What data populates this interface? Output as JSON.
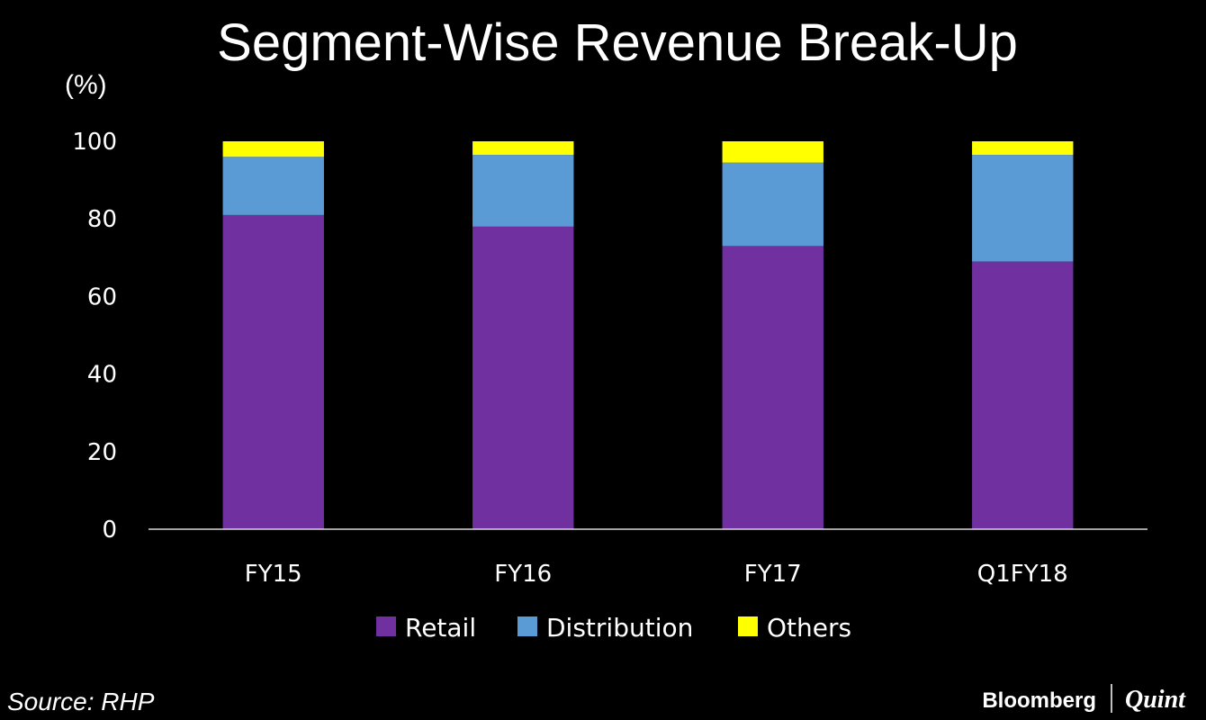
{
  "title": "Segment-Wise Revenue Break-Up",
  "unit_label": "(%)",
  "source": "Source: RHP",
  "brand": {
    "name": "Bloomberg",
    "name2": "Quint"
  },
  "chart_data": {
    "type": "bar",
    "stacked": true,
    "categories": [
      "FY15",
      "FY16",
      "FY17",
      "Q1FY18"
    ],
    "series": [
      {
        "name": "Retail",
        "color": "#7030a0",
        "values": [
          81,
          78,
          73,
          69
        ]
      },
      {
        "name": "Distribution",
        "color": "#5b9bd5",
        "values": [
          15,
          18.5,
          21.5,
          27.5
        ]
      },
      {
        "name": "Others",
        "color": "#ffff00",
        "values": [
          4,
          3.5,
          5.5,
          3.5
        ]
      }
    ],
    "ylim": [
      0,
      100
    ],
    "yticks": [
      "0",
      "20",
      "40",
      "60",
      "80",
      "100"
    ],
    "grid": false,
    "legend_position": "bottom"
  }
}
